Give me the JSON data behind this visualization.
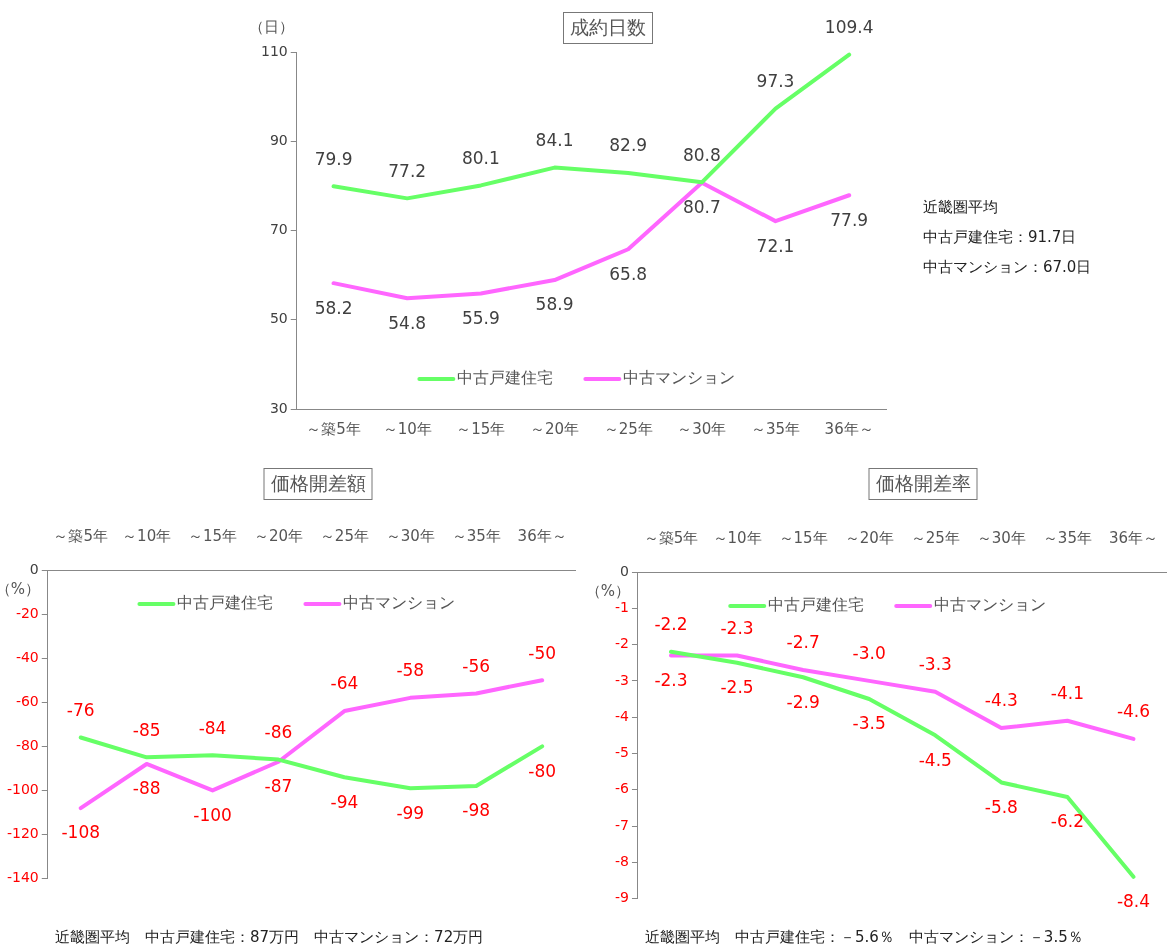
{
  "chart_data": [
    {
      "type": "line",
      "title": "成約日数",
      "ylabel": "（日）",
      "categories": [
        "～築5年",
        "～10年",
        "～15年",
        "～20年",
        "～25年",
        "～30年",
        "～35年",
        "36年～"
      ],
      "series": [
        {
          "name": "中古戸建住宅",
          "color": "#66ff66",
          "values": [
            79.9,
            77.2,
            80.1,
            84.1,
            82.9,
            80.8,
            97.3,
            109.4
          ]
        },
        {
          "name": "中古マンション",
          "color": "#ff66ff",
          "values": [
            58.2,
            54.8,
            55.9,
            58.9,
            65.8,
            80.7,
            72.1,
            77.9
          ]
        }
      ],
      "ylim": [
        30,
        110
      ],
      "yticks": [
        30,
        50,
        70,
        90,
        110
      ],
      "data_labels": true,
      "legend": "bottom",
      "marker": "none",
      "annotations": [
        "近畿圏平均",
        "中古戸建住宅：91.7日",
        "中古マンション：67.0日"
      ]
    },
    {
      "type": "line",
      "title": "価格開差額",
      "ylabel": "（%）",
      "categories": [
        "～築5年",
        "～10年",
        "～15年",
        "～20年",
        "～25年",
        "～30年",
        "～35年",
        "36年～"
      ],
      "series": [
        {
          "name": "中古戸建住宅",
          "color": "#66ff66",
          "values": [
            -76,
            -85,
            -84,
            -86,
            -94,
            -99,
            -98,
            -80
          ]
        },
        {
          "name": "中古マンション",
          "color": "#ff66ff",
          "values": [
            -108,
            -88,
            -100,
            -87,
            -64,
            -58,
            -56,
            -50
          ]
        }
      ],
      "ylim": [
        -140,
        0
      ],
      "yticks": [
        -140,
        -120,
        -100,
        -80,
        -60,
        -40,
        -20,
        0
      ],
      "data_labels": true,
      "legend": "top",
      "marker": "none",
      "annotations": [
        "近畿圏平均　中古戸建住宅：87万円　中古マンション：72万円"
      ]
    },
    {
      "type": "line",
      "title": "価格開差率",
      "ylabel": "（%）",
      "categories": [
        "～築5年",
        "～10年",
        "～15年",
        "～20年",
        "～25年",
        "～30年",
        "～35年",
        "36年～"
      ],
      "series": [
        {
          "name": "中古戸建住宅",
          "color": "#66ff66",
          "values": [
            -2.2,
            -2.5,
            -2.9,
            -3.5,
            -4.5,
            -5.8,
            -6.2,
            -8.4
          ],
          "value_labels": [
            "-2.2",
            "-2.5",
            "-2.9",
            "-3.5",
            "-4.5",
            "-5.8",
            "-6.2",
            "-8.4"
          ]
        },
        {
          "name": "中古マンション",
          "color": "#ff66ff",
          "values": [
            -2.3,
            -2.3,
            -2.7,
            -3.0,
            -3.3,
            -4.3,
            -4.1,
            -4.6
          ],
          "value_labels": [
            "-2.3",
            "-2.3",
            "-2.7",
            "-3.0",
            "-3.3",
            "-4.3",
            "-4.1",
            "-4.6"
          ]
        }
      ],
      "ylim": [
        -9,
        0
      ],
      "yticks": [
        -9,
        -8,
        -7,
        -6,
        -5,
        -4,
        -3,
        -2,
        -1,
        0
      ],
      "legend": "top",
      "marker": "none",
      "annotations": [
        "近畿圏平均　中古戸建住宅：－5.6％　中古マンション：－3.5％"
      ]
    }
  ]
}
